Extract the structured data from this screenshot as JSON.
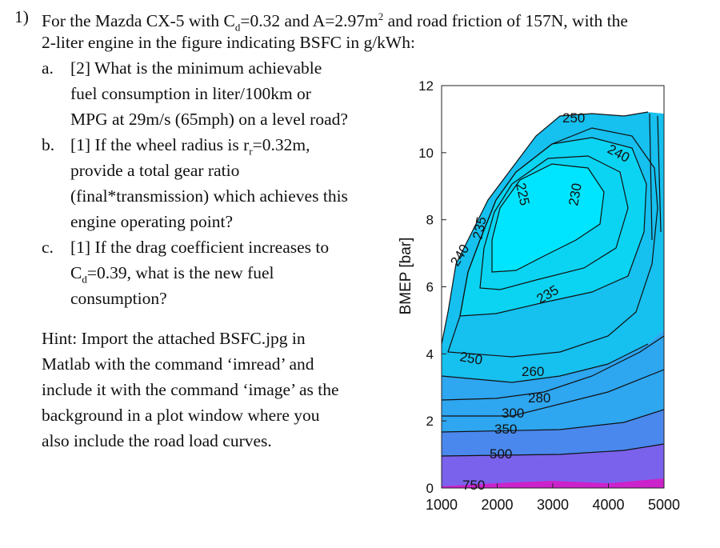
{
  "question": {
    "number": "1)",
    "intro_line1": "For the Mazda CX-5 with Cd=0.32 and A=2.97m² and road friction of 157N, with the",
    "intro_line2": "2-liter engine in the figure indicating BSFC in g/kWh:",
    "parts": [
      {
        "label": "a.",
        "lines": [
          "[2] What is the minimum achievable",
          "fuel consumption in liter/100km or",
          "MPG at 29m/s (65mph) on a level road?"
        ]
      },
      {
        "label": "b.",
        "lines": [
          "[1] If the wheel radius is rr=0.32m,",
          "provide a total gear ratio",
          "(final*transmission) which achieves this",
          "engine operating point?"
        ]
      },
      {
        "label": "c.",
        "lines": [
          "[1] If the drag coefficient increases to",
          "Cd=0.39, what is the new fuel",
          "consumption?"
        ]
      }
    ]
  },
  "hint": {
    "lines": [
      "Hint: Import the attached BSFC.jpg in",
      "Matlab with the command ‘imread’ and",
      "include it with the command ‘image’ as the",
      "background in a plot window where you",
      "also include the road load curves."
    ]
  },
  "chart_data": {
    "type": "contour",
    "title": "",
    "xlabel": "",
    "ylabel": "BMEP [bar]",
    "xlim": [
      1000,
      5000
    ],
    "ylim": [
      0,
      12
    ],
    "x_ticks": [
      "1000",
      "2000",
      "3000",
      "4000",
      "5000"
    ],
    "y_ticks": [
      "0",
      "2",
      "4",
      "6",
      "8",
      "10",
      "12"
    ],
    "contour_levels": [
      "225",
      "230",
      "235",
      "240",
      "250",
      "260",
      "280",
      "300",
      "350",
      "500",
      "750"
    ],
    "colors": {
      "level_225": "#00e5ff",
      "level_235": "#0ad4f2",
      "level_250": "#16c0ef",
      "level_280": "#2ea6f0",
      "level_350": "#4a88ee",
      "level_500": "#7a62ec",
      "level_750": "#cc22cc"
    }
  }
}
